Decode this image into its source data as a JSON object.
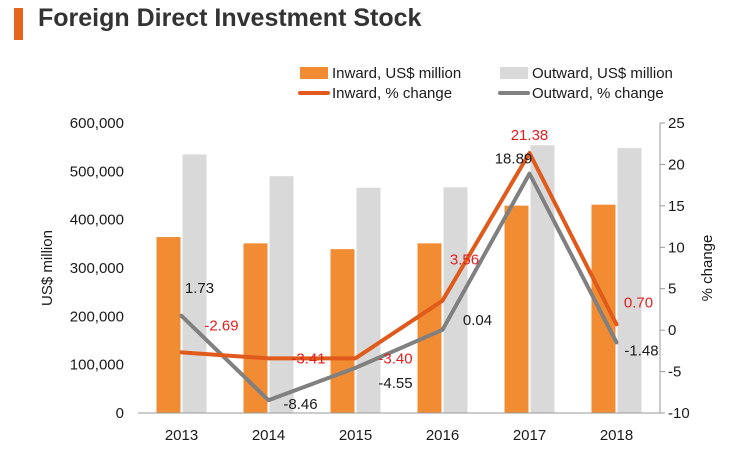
{
  "title": "Foreign Direct Investment Stock",
  "colors": {
    "accent": "#e8641e",
    "inward_bar": "#f28c33",
    "outward_bar": "#d9d9d9",
    "inward_line": "#e05a1c",
    "outward_line": "#808080",
    "inward_label": "#e02020",
    "outward_label": "#1a1a1a",
    "axis": "#999999",
    "text": "#1a1a1a"
  },
  "chart_data": {
    "type": "bar",
    "categories": [
      "2013",
      "2014",
      "2015",
      "2016",
      "2017",
      "2018"
    ],
    "series": [
      {
        "name": "Inward, US$ million",
        "type": "bar",
        "axis": "left",
        "values": [
          364000,
          351000,
          339000,
          351000,
          429000,
          431000
        ]
      },
      {
        "name": "Outward, US$ million",
        "type": "bar",
        "axis": "left",
        "values": [
          535000,
          490000,
          466000,
          467000,
          554000,
          548000
        ]
      },
      {
        "name": "Inward, % change",
        "type": "line",
        "axis": "right",
        "values": [
          -2.69,
          -3.41,
          -3.4,
          3.56,
          21.38,
          0.7
        ],
        "labels": [
          "-2.69",
          "-3.41",
          "-3.40",
          "3.56",
          "21.38",
          "0.70"
        ]
      },
      {
        "name": "Outward, % change",
        "type": "line",
        "axis": "right",
        "values": [
          1.73,
          -8.46,
          -4.55,
          0.04,
          18.89,
          -1.48
        ],
        "labels": [
          "1.73",
          "-8.46",
          "-4.55",
          "0.04",
          "18.89",
          "-1.48"
        ]
      }
    ],
    "ylabel": "US$ million",
    "y2label": "% change",
    "ylim": [
      0,
      600000
    ],
    "y2lim": [
      -10,
      25
    ],
    "yticks": [
      "0",
      "100,000",
      "200,000",
      "300,000",
      "400,000",
      "500,000",
      "600,000"
    ],
    "y2ticks": [
      "-10",
      "-5",
      "0",
      "5",
      "10",
      "15",
      "20",
      "25"
    ],
    "legend": "top-right",
    "grid": false
  }
}
